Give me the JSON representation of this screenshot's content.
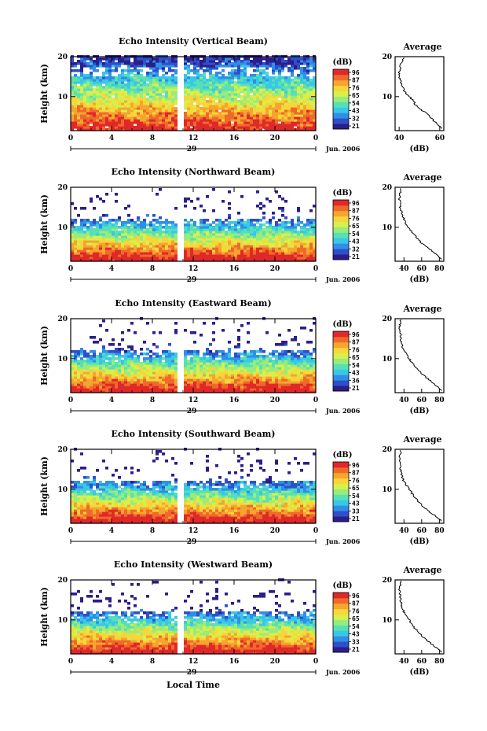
{
  "colors": {
    "colormap": [
      "#2b1e8c",
      "#2f4fc9",
      "#2f8fe6",
      "#39c7e8",
      "#56e0b6",
      "#98ec7c",
      "#d8ef4c",
      "#f6d63a",
      "#f6a52e",
      "#ef6a2a",
      "#e0282a"
    ]
  },
  "chart_data": [
    {
      "type": "heatmap",
      "title": "Echo Intensity (Vertical Beam)",
      "ylabel": "Height (km)",
      "xticks": [
        "0",
        "4",
        "8",
        "12",
        "16",
        "20",
        "0"
      ],
      "xlim": [
        0,
        24
      ],
      "yticks": [
        "20",
        "10"
      ],
      "ylim": [
        1.5,
        20
      ],
      "day_label": "29",
      "date_label": "Jun. 2006",
      "data_gap_hours": [
        10.4,
        10.9
      ],
      "colorbar": {
        "title": "(dB)",
        "ticks": [
          "96",
          "87",
          "76",
          "65",
          "54",
          "43",
          "32",
          "21"
        ]
      },
      "profile": {
        "title": "Average",
        "xlabel": "(dB)",
        "xticks": [
          "40",
          "60"
        ],
        "xlim": [
          38,
          62
        ],
        "yticks": [
          "20",
          "10"
        ],
        "height_km": [
          2,
          3,
          4,
          5,
          6,
          7,
          8,
          9,
          10,
          11,
          12,
          13,
          14,
          15,
          16,
          17,
          18,
          19
        ],
        "value_db": [
          61,
          59,
          57,
          55,
          53,
          50,
          48,
          47,
          45,
          43,
          42,
          41,
          41,
          40,
          40,
          41,
          40,
          42
        ]
      }
    },
    {
      "type": "heatmap",
      "title": "Echo Intensity (Northward Beam)",
      "ylabel": "Height (km)",
      "xticks": [
        "0",
        "4",
        "8",
        "12",
        "16",
        "20",
        "0"
      ],
      "xlim": [
        0,
        24
      ],
      "yticks": [
        "20",
        "10"
      ],
      "ylim": [
        1.5,
        20
      ],
      "day_label": "29",
      "date_label": "Jun. 2006",
      "data_gap_hours": [
        10.4,
        10.9
      ],
      "colorbar": {
        "title": "(dB)",
        "ticks": [
          "96",
          "87",
          "76",
          "65",
          "54",
          "43",
          "32",
          "21"
        ]
      },
      "profile": {
        "title": "Average",
        "xlabel": "(dB)",
        "xticks": [
          "40",
          "60",
          "80"
        ],
        "xlim": [
          30,
          85
        ],
        "yticks": [
          "20",
          "10"
        ],
        "height_km": [
          2,
          3,
          4,
          5,
          6,
          7,
          8,
          9,
          10,
          11,
          12,
          13,
          14,
          15,
          16,
          17,
          18,
          19
        ],
        "value_db": [
          82,
          78,
          72,
          66,
          60,
          56,
          52,
          48,
          45,
          42,
          40,
          38,
          37,
          36,
          36,
          35,
          35,
          36
        ]
      }
    },
    {
      "type": "heatmap",
      "title": "Echo Intensity (Eastward Beam)",
      "ylabel": "Height (km)",
      "xticks": [
        "0",
        "4",
        "8",
        "12",
        "16",
        "20",
        "0"
      ],
      "xlim": [
        0,
        24
      ],
      "yticks": [
        "20",
        "10"
      ],
      "ylim": [
        1.5,
        20
      ],
      "day_label": "29",
      "date_label": "Jun. 2006",
      "data_gap_hours": [
        10.4,
        10.9
      ],
      "colorbar": {
        "title": "(dB)",
        "ticks": [
          "96",
          "87",
          "76",
          "65",
          "54",
          "43",
          "36",
          "21"
        ]
      },
      "profile": {
        "title": "Average",
        "xlabel": "(dB)",
        "xticks": [
          "40",
          "60",
          "80"
        ],
        "xlim": [
          30,
          85
        ],
        "yticks": [
          "20",
          "10"
        ],
        "height_km": [
          2,
          3,
          4,
          5,
          6,
          7,
          8,
          9,
          10,
          11,
          12,
          13,
          14,
          15,
          16,
          17,
          18,
          19
        ],
        "value_db": [
          82,
          78,
          72,
          67,
          61,
          57,
          53,
          49,
          46,
          43,
          40,
          38,
          37,
          36,
          36,
          35,
          35,
          36
        ]
      }
    },
    {
      "type": "heatmap",
      "title": "Echo Intensity (Southward Beam)",
      "ylabel": "Height (km)",
      "xticks": [
        "0",
        "4",
        "8",
        "12",
        "16",
        "20",
        "0"
      ],
      "xlim": [
        0,
        24
      ],
      "yticks": [
        "20",
        "10"
      ],
      "ylim": [
        1.5,
        20
      ],
      "day_label": "29",
      "date_label": "Jun. 2006",
      "data_gap_hours": [
        10.4,
        10.9
      ],
      "colorbar": {
        "title": "(dB)",
        "ticks": [
          "96",
          "87",
          "76",
          "65",
          "54",
          "43",
          "33",
          "21"
        ]
      },
      "profile": {
        "title": "Average",
        "xlabel": "(dB)",
        "xticks": [
          "40",
          "60",
          "80"
        ],
        "xlim": [
          30,
          85
        ],
        "yticks": [
          "20",
          "10"
        ],
        "height_km": [
          2,
          3,
          4,
          5,
          6,
          7,
          8,
          9,
          10,
          11,
          12,
          13,
          14,
          15,
          16,
          17,
          18,
          19
        ],
        "value_db": [
          82,
          78,
          71,
          66,
          60,
          56,
          52,
          49,
          46,
          43,
          40,
          38,
          37,
          36,
          36,
          35,
          35,
          36
        ]
      }
    },
    {
      "type": "heatmap",
      "title": "Echo Intensity (Westward Beam)",
      "ylabel": "Height (km)",
      "xticks": [
        "0",
        "4",
        "8",
        "12",
        "16",
        "20",
        "0"
      ],
      "xlim": [
        0,
        24
      ],
      "yticks": [
        "20",
        "10"
      ],
      "ylim": [
        1.5,
        20
      ],
      "day_label": "29",
      "date_label": "Jun. 2006",
      "xlabel": "Local Time",
      "data_gap_hours": [
        10.4,
        10.9
      ],
      "colorbar": {
        "title": "(dB)",
        "ticks": [
          "96",
          "87",
          "76",
          "65",
          "54",
          "43",
          "33",
          "21"
        ]
      },
      "profile": {
        "title": "Average",
        "xlabel": "(dB)",
        "xticks": [
          "40",
          "60",
          "80"
        ],
        "xlim": [
          30,
          85
        ],
        "yticks": [
          "20",
          "10"
        ],
        "height_km": [
          2,
          3,
          4,
          5,
          6,
          7,
          8,
          9,
          10,
          11,
          12,
          13,
          14,
          15,
          16,
          17,
          18,
          19
        ],
        "value_db": [
          82,
          77,
          71,
          65,
          60,
          56,
          52,
          49,
          46,
          43,
          40,
          38,
          37,
          36,
          36,
          35,
          35,
          36
        ]
      }
    }
  ]
}
